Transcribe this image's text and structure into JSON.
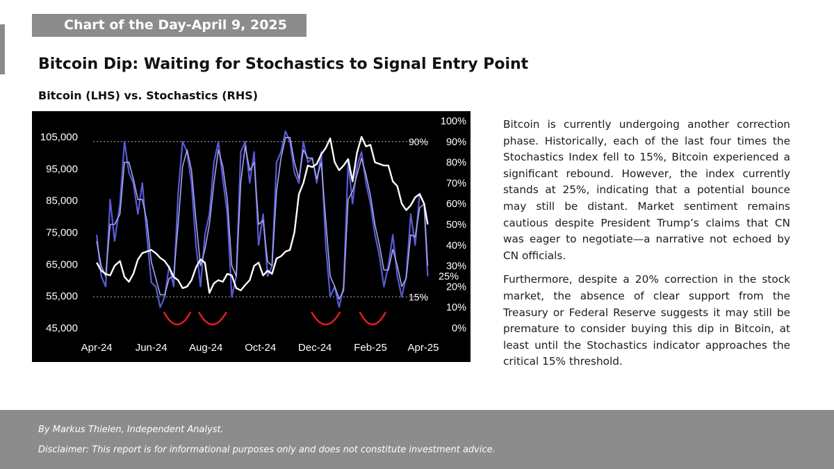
{
  "banner": {
    "text": "Chart of the Day-April 9, 2025"
  },
  "title": "Bitcoin Dip: Waiting for Stochastics to Signal Entry Point",
  "subtitle": "Bitcoin (LHS) vs. Stochastics (RHS)",
  "paragraphs": [
    "Bitcoin is currently undergoing another correction phase. Historically, each of the last four times the Stochastics Index fell to 15%, Bitcoin experienced a significant rebound. However, the index currently stands at 25%, indicating that a potential bounce may still be distant. Market sentiment remains cautious despite President Trump’s claims that CN was eager to negotiate—a narrative not echoed by CN officials.",
    "Furthermore, despite a 20% correction in the stock market, the absence of clear support from the Treasury or Federal Reserve suggests it may still be premature to consider buying this dip in Bitcoin, at least until the Stochastics indicator approaches the critical 15% threshold."
  ],
  "footer": {
    "author": "By Markus Thielen, Independent Analyst.",
    "disclaimer": "Disclaimer: This report is for informational purposes only and does not constitute investment advice."
  },
  "chart_data": {
    "type": "line",
    "title": "Bitcoin (LHS) vs. Stochastics (RHS)",
    "x_tick_labels": [
      "Apr-24",
      "Jun-24",
      "Aug-24",
      "Oct-24",
      "Dec-24",
      "Feb-25",
      "Apr-25"
    ],
    "x_tick_dates": [
      "2024-04-01",
      "2024-06-01",
      "2024-08-01",
      "2024-10-01",
      "2024-12-01",
      "2025-02-01",
      "2025-04-01"
    ],
    "x_range": [
      "2024-03-28",
      "2025-04-08"
    ],
    "y_left": {
      "ticks": [
        45000,
        55000,
        65000,
        75000,
        85000,
        95000,
        105000
      ],
      "tick_labels": [
        "45,000",
        "55,000",
        "65,000",
        "75,000",
        "85,000",
        "95,000",
        "105,000"
      ],
      "range": [
        45000,
        110000
      ]
    },
    "y_right": {
      "ticks": [
        0,
        10,
        20,
        30,
        40,
        50,
        60,
        70,
        80,
        90,
        100
      ],
      "tick_labels": [
        "0%",
        "10%",
        "20%",
        "30%",
        "40%",
        "50%",
        "60%",
        "70%",
        "80%",
        "90%",
        "100%"
      ],
      "range": [
        0,
        100
      ]
    },
    "reference_lines": [
      {
        "axis": "right",
        "value": 90,
        "label": "90%"
      },
      {
        "axis": "right",
        "value": 15,
        "label": "15%"
      }
    ],
    "annotations": [
      {
        "text": "25%",
        "axis": "right",
        "value": 25
      }
    ],
    "highlight_arcs": [
      {
        "start": "2024-06-15",
        "end": "2024-07-15"
      },
      {
        "start": "2024-07-24",
        "end": "2024-08-24"
      },
      {
        "start": "2024-11-27",
        "end": "2024-12-29"
      },
      {
        "start": "2025-01-20",
        "end": "2025-02-18"
      }
    ],
    "colors": {
      "background": "#000000",
      "bitcoin": "#ffffff",
      "stochastics_fast": "#5a5ad6",
      "stochastics_slow": "#a4a6ea",
      "arc": "#e11d24",
      "gridline": "#bbbbbb"
    },
    "series": [
      {
        "name": "Bitcoin",
        "axis": "left",
        "x": [
          "2024-04-01",
          "2024-04-06",
          "2024-04-11",
          "2024-04-16",
          "2024-04-21",
          "2024-04-27",
          "2024-05-02",
          "2024-05-07",
          "2024-05-12",
          "2024-05-17",
          "2024-05-22",
          "2024-05-27",
          "2024-06-01",
          "2024-06-06",
          "2024-06-11",
          "2024-06-16",
          "2024-06-21",
          "2024-06-26",
          "2024-07-01",
          "2024-07-06",
          "2024-07-11",
          "2024-07-16",
          "2024-07-21",
          "2024-07-26",
          "2024-07-31",
          "2024-08-05",
          "2024-08-10",
          "2024-08-15",
          "2024-08-20",
          "2024-08-25",
          "2024-08-30",
          "2024-09-04",
          "2024-09-09",
          "2024-09-14",
          "2024-09-19",
          "2024-09-24",
          "2024-09-29",
          "2024-10-04",
          "2024-10-09",
          "2024-10-14",
          "2024-10-19",
          "2024-10-24",
          "2024-10-29",
          "2024-11-03",
          "2024-11-08",
          "2024-11-13",
          "2024-11-18",
          "2024-11-23",
          "2024-11-28",
          "2024-12-03",
          "2024-12-08",
          "2024-12-13",
          "2024-12-18",
          "2024-12-23",
          "2024-12-28",
          "2025-01-02",
          "2025-01-07",
          "2025-01-12",
          "2025-01-17",
          "2025-01-22",
          "2025-01-27",
          "2025-02-01",
          "2025-02-06",
          "2025-02-11",
          "2025-02-16",
          "2025-02-21",
          "2025-02-26",
          "2025-03-03",
          "2025-03-08",
          "2025-03-13",
          "2025-03-18",
          "2025-03-23",
          "2025-03-28",
          "2025-04-02",
          "2025-04-06"
        ],
        "values": [
          65500,
          63000,
          62000,
          61500,
          64500,
          66000,
          61000,
          59500,
          62000,
          66500,
          68500,
          69000,
          69500,
          68500,
          67000,
          66000,
          64000,
          61000,
          60000,
          57500,
          58000,
          60000,
          64000,
          66500,
          65500,
          56000,
          59000,
          60000,
          59500,
          62000,
          61500,
          57500,
          56800,
          58500,
          60000,
          64500,
          65500,
          61500,
          63000,
          62000,
          66800,
          67500,
          69000,
          69500,
          75000,
          87000,
          90500,
          96000,
          95500,
          96500,
          99500,
          101500,
          104500,
          97000,
          94500,
          96000,
          98000,
          91000,
          100000,
          105000,
          102000,
          102500,
          97000,
          96500,
          96000,
          96000,
          91000,
          89500,
          84000,
          82000,
          83500,
          86000,
          87000,
          84000,
          77500
        ]
      },
      {
        "name": "Stochastics (fast)",
        "axis": "right",
        "x": [
          "2024-04-01",
          "2024-04-06",
          "2024-04-11",
          "2024-04-16",
          "2024-04-21",
          "2024-04-27",
          "2024-05-02",
          "2024-05-07",
          "2024-05-12",
          "2024-05-17",
          "2024-05-22",
          "2024-05-27",
          "2024-06-01",
          "2024-06-06",
          "2024-06-11",
          "2024-06-16",
          "2024-06-21",
          "2024-06-26",
          "2024-07-01",
          "2024-07-06",
          "2024-07-11",
          "2024-07-16",
          "2024-07-21",
          "2024-07-26",
          "2024-07-31",
          "2024-08-05",
          "2024-08-10",
          "2024-08-15",
          "2024-08-20",
          "2024-08-25",
          "2024-08-30",
          "2024-09-04",
          "2024-09-09",
          "2024-09-14",
          "2024-09-19",
          "2024-09-24",
          "2024-09-29",
          "2024-10-04",
          "2024-10-09",
          "2024-10-14",
          "2024-10-19",
          "2024-10-24",
          "2024-10-29",
          "2024-11-03",
          "2024-11-08",
          "2024-11-13",
          "2024-11-18",
          "2024-11-23",
          "2024-11-28",
          "2024-12-03",
          "2024-12-08",
          "2024-12-13",
          "2024-12-18",
          "2024-12-23",
          "2024-12-28",
          "2025-01-02",
          "2025-01-07",
          "2025-01-12",
          "2025-01-17",
          "2025-01-22",
          "2025-01-27",
          "2025-02-01",
          "2025-02-06",
          "2025-02-11",
          "2025-02-16",
          "2025-02-21",
          "2025-02-26",
          "2025-03-03",
          "2025-03-08",
          "2025-03-13",
          "2025-03-18",
          "2025-03-23",
          "2025-03-28",
          "2025-04-02",
          "2025-04-06"
        ],
        "values": [
          45,
          25,
          20,
          62,
          42,
          60,
          90,
          75,
          70,
          55,
          70,
          45,
          22,
          20,
          10,
          15,
          30,
          20,
          65,
          90,
          85,
          70,
          40,
          20,
          45,
          55,
          80,
          90,
          72,
          55,
          15,
          25,
          85,
          90,
          70,
          85,
          40,
          55,
          25,
          30,
          80,
          85,
          95,
          90,
          75,
          70,
          90,
          80,
          82,
          70,
          85,
          40,
          15,
          20,
          10,
          20,
          80,
          60,
          78,
          85,
          70,
          60,
          45,
          35,
          20,
          30,
          45,
          25,
          15,
          25,
          55,
          40,
          65,
          60,
          25
        ]
      },
      {
        "name": "Stochastics (slow)",
        "axis": "right",
        "x": [
          "2024-04-01",
          "2024-04-06",
          "2024-04-11",
          "2024-04-16",
          "2024-04-21",
          "2024-04-27",
          "2024-05-02",
          "2024-05-07",
          "2024-05-12",
          "2024-05-17",
          "2024-05-22",
          "2024-05-27",
          "2024-06-01",
          "2024-06-06",
          "2024-06-11",
          "2024-06-16",
          "2024-06-21",
          "2024-06-26",
          "2024-07-01",
          "2024-07-06",
          "2024-07-11",
          "2024-07-16",
          "2024-07-21",
          "2024-07-26",
          "2024-07-31",
          "2024-08-05",
          "2024-08-10",
          "2024-08-15",
          "2024-08-20",
          "2024-08-25",
          "2024-08-30",
          "2024-09-04",
          "2024-09-09",
          "2024-09-14",
          "2024-09-19",
          "2024-09-24",
          "2024-09-29",
          "2024-10-04",
          "2024-10-09",
          "2024-10-14",
          "2024-10-19",
          "2024-10-24",
          "2024-10-29",
          "2024-11-03",
          "2024-11-08",
          "2024-11-13",
          "2024-11-18",
          "2024-11-23",
          "2024-11-28",
          "2024-12-03",
          "2024-12-08",
          "2024-12-13",
          "2024-12-18",
          "2024-12-23",
          "2024-12-28",
          "2025-01-02",
          "2025-01-07",
          "2025-01-12",
          "2025-01-17",
          "2025-01-22",
          "2025-01-27",
          "2025-02-01",
          "2025-02-06",
          "2025-02-11",
          "2025-02-16",
          "2025-02-21",
          "2025-02-26",
          "2025-03-03",
          "2025-03-08",
          "2025-03-13",
          "2025-03-18",
          "2025-03-23",
          "2025-03-28",
          "2025-04-02",
          "2025-04-06"
        ],
        "values": [
          42,
          30,
          25,
          50,
          50,
          55,
          80,
          80,
          72,
          62,
          62,
          52,
          32,
          24,
          16,
          16,
          24,
          25,
          50,
          78,
          86,
          76,
          52,
          30,
          38,
          50,
          70,
          86,
          78,
          62,
          30,
          25,
          70,
          88,
          76,
          80,
          50,
          52,
          32,
          30,
          66,
          82,
          92,
          92,
          80,
          72,
          86,
          82,
          82,
          72,
          80,
          52,
          25,
          20,
          14,
          18,
          62,
          66,
          74,
          82,
          74,
          64,
          50,
          40,
          28,
          28,
          38,
          30,
          20,
          24,
          45,
          44,
          58,
          60,
          30
        ]
      }
    ]
  }
}
